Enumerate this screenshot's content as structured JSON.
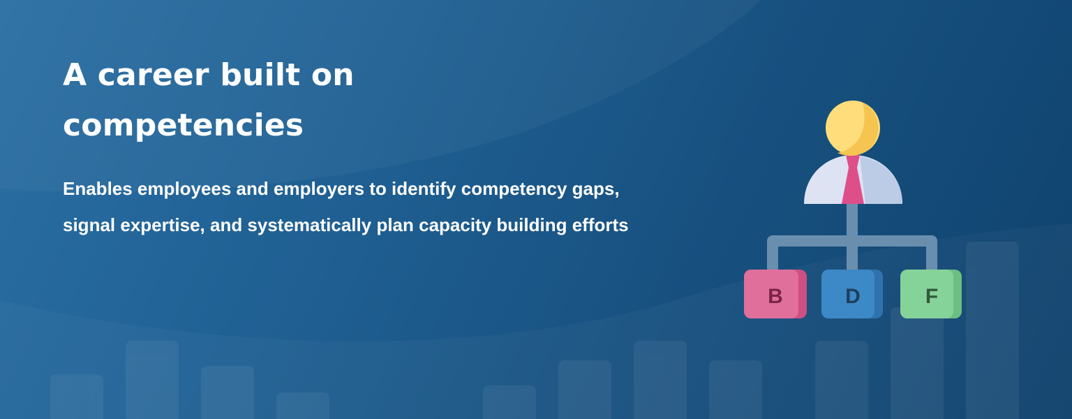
{
  "hero": {
    "title_line1": "A career built on",
    "title_line2": "competencies",
    "subtitle_line1": "Enables employees and employers to identify competency gaps,",
    "subtitle_line2": "signal expertise, and systematically plan capacity building efforts"
  },
  "illustration": {
    "icon": "org-chart-icon",
    "nodes": [
      {
        "letter": "B",
        "color": "#e06f9c",
        "text_color": "#7a2446"
      },
      {
        "letter": "D",
        "color": "#3d88c6",
        "text_color": "#1c3f5f"
      },
      {
        "letter": "F",
        "color": "#86d39a",
        "text_color": "#2f5a3a"
      }
    ]
  },
  "colors": {
    "background_dark": "#0f426d",
    "background_light": "#2a6fa3",
    "text": "#ffffff"
  }
}
